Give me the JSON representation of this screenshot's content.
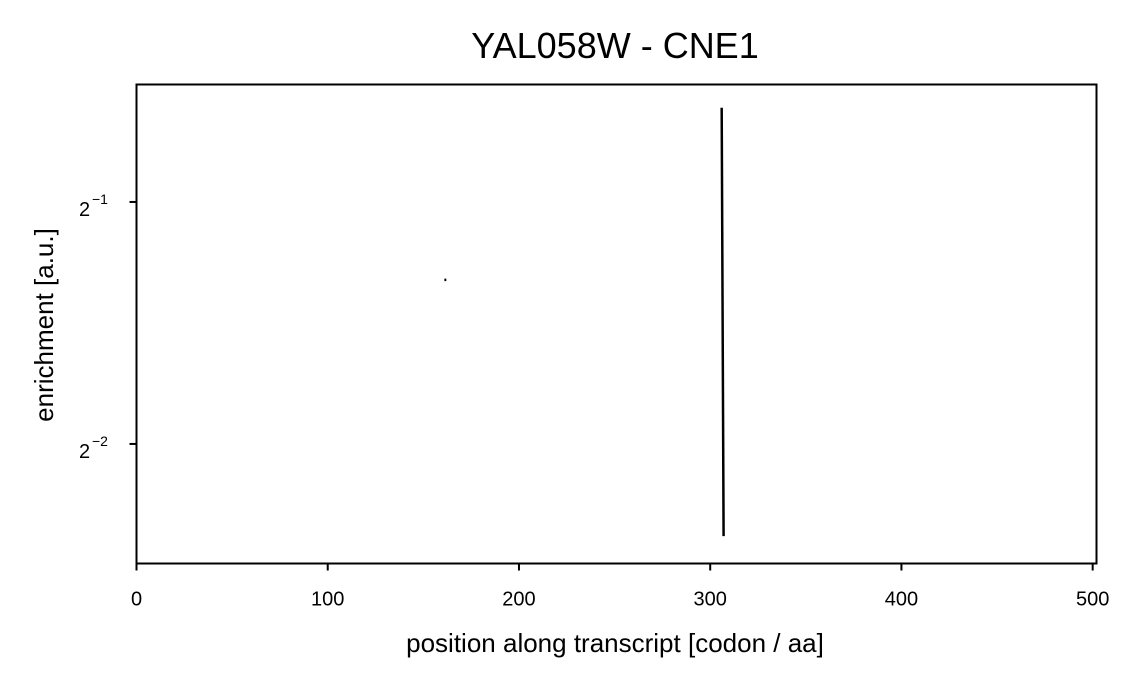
{
  "chart_data": {
    "type": "line",
    "title": "YAL058W - CNE1",
    "xlabel": "position along transcript [codon / aa]",
    "ylabel": "enrichment [a.u.]",
    "xlim": [
      0,
      502
    ],
    "ylim": [
      0.1775,
      0.7
    ],
    "yscale": "log2",
    "grid": false,
    "x_ticks": [
      0,
      100,
      200,
      300,
      400,
      500
    ],
    "x_tick_labels": [
      "0",
      "100",
      "200",
      "300",
      "400",
      "500"
    ],
    "y_ticks": [
      0.25,
      0.5
    ],
    "y_tick_labels": [
      {
        "base": "2",
        "exp": "−2"
      },
      {
        "base": "2",
        "exp": "−1"
      }
    ],
    "series": [
      {
        "color": "#000000",
        "points": [
          [
            161,
            0.4
          ],
          [
            162,
            0.4
          ],
          [
            null,
            null
          ],
          [
            306,
            0.655
          ],
          [
            307,
            0.192
          ]
        ]
      }
    ]
  }
}
